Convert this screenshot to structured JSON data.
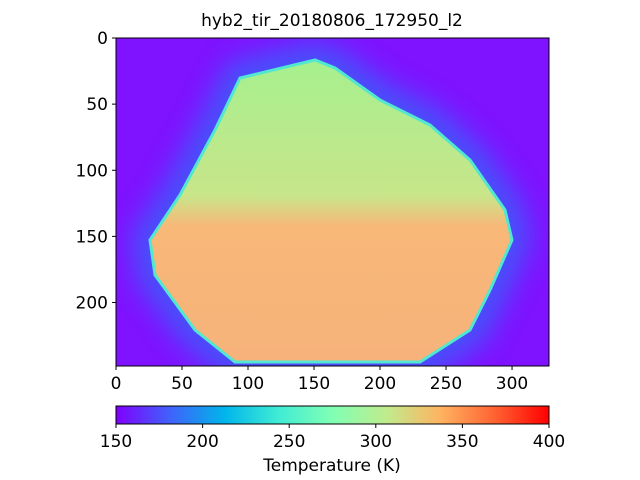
{
  "chart_data": {
    "type": "image",
    "title": "hyb2_tir_20180806_172950_l2",
    "xlim": [
      0,
      328
    ],
    "xticks": [
      0,
      50,
      100,
      150,
      200,
      250,
      300
    ],
    "ylim": [
      248,
      0
    ],
    "yticks": [
      0,
      50,
      100,
      150,
      200
    ],
    "colormap": "rainbow",
    "colorbar": {
      "label": "Temperature (K)",
      "lim": [
        150,
        400
      ],
      "ticks": [
        150,
        200,
        250,
        300,
        350,
        400
      ]
    }
  }
}
